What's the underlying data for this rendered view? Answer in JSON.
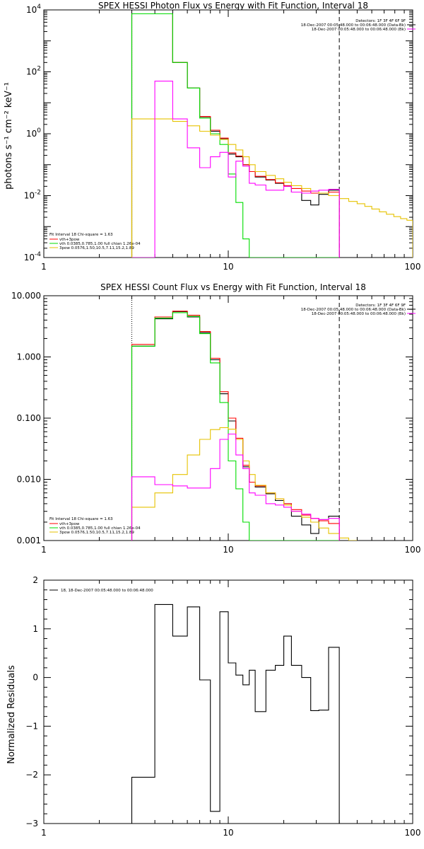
{
  "chart_data": [
    {
      "type": "line",
      "title": "SPEX HESSI Photon Flux vs Energy with Fit Function, Interval 18",
      "xlabel": "",
      "ylabel": "photons s⁻¹ cm⁻² keV⁻¹",
      "xscale": "log",
      "yscale": "log",
      "xlim": [
        1,
        100
      ],
      "ylim": [
        0.0001,
        10000
      ],
      "x_ticks": [
        "1",
        "10",
        "100"
      ],
      "y_ticks": [
        {
          "base": "10",
          "exp": "-4"
        },
        {
          "base": "10",
          "exp": "-2"
        },
        {
          "base": "10",
          "exp": "0"
        },
        {
          "base": "10",
          "exp": "2"
        },
        {
          "base": "10",
          "exp": "4"
        }
      ],
      "info_lines": [
        "Detectors: 1F 3F 4F 6F 9F",
        "18-Dec-2007 00:05:48.000 to 00:06:48.000 (Data-Bk)",
        "18-Dec-2007 00:05:48.000 to 00:06:48.000 (Bk)"
      ],
      "legend": {
        "header": "Fit Interval 18    Chi-square = 1.63",
        "items": [
          {
            "label": "vth+3pow",
            "color": "#ff0000"
          },
          {
            "label": "vth 0.0385,0.785,1.00  full chian 1.26e-04",
            "color": "#00dd00"
          },
          {
            "label": "3pow 0.0576,1.50,10.5,7.11,15.2,1.89",
            "color": "#e6c200"
          }
        ]
      },
      "vlines": [
        {
          "x": 3.0,
          "style": "dotted",
          "color": "#000000"
        },
        {
          "x": 40.0,
          "style": "dashed",
          "color": "#000000"
        }
      ],
      "series": [
        {
          "color": "#000000",
          "edges": [
            3,
            4,
            5,
            6,
            7,
            8,
            9,
            10,
            11,
            12,
            13,
            14,
            16,
            18,
            20,
            22,
            25,
            28,
            31,
            35,
            40
          ],
          "values": [
            7500,
            7500,
            200,
            30,
            3.5,
            1.2,
            0.7,
            0.22,
            0.18,
            0.1,
            0.06,
            0.04,
            0.032,
            0.025,
            0.02,
            0.013,
            0.007,
            0.005,
            0.011,
            0.015
          ]
        },
        {
          "color": "#ff0000",
          "edges": [
            3,
            4,
            5,
            6,
            7,
            8,
            9,
            10,
            11,
            12,
            13,
            14,
            16,
            18,
            20,
            22,
            25,
            28,
            31,
            35,
            40
          ],
          "values": [
            7500,
            7500,
            200,
            30,
            3.6,
            1.3,
            0.72,
            0.24,
            0.19,
            0.1,
            0.06,
            0.042,
            0.033,
            0.026,
            0.021,
            0.017,
            0.014,
            0.012,
            0.012,
            0.013
          ]
        },
        {
          "color": "#00dd00",
          "edges": [
            3,
            4,
            5,
            6,
            7,
            8,
            9,
            10,
            11,
            12,
            13,
            14,
            16,
            18,
            20,
            22,
            25,
            28,
            31,
            35,
            40
          ],
          "values": [
            7500,
            7500,
            200,
            30,
            3.2,
            1.0,
            0.45,
            0.05,
            0.006,
            0.0004,
            0.0001,
            0.0001,
            0.0001,
            0.0001,
            0.0001,
            0.0001,
            0.0001,
            0.0001,
            0.0001,
            0.0001
          ]
        },
        {
          "color": "#e6c200",
          "edges": [
            3,
            4,
            5,
            6,
            7,
            8,
            9,
            10,
            11,
            12,
            13,
            14,
            16,
            18,
            20,
            22,
            25,
            28,
            31,
            35,
            40,
            45,
            50,
            55,
            60,
            66,
            72,
            79,
            86,
            93,
            100
          ],
          "values": [
            3,
            3,
            2.5,
            1.8,
            1.2,
            0.9,
            0.65,
            0.45,
            0.3,
            0.18,
            0.1,
            0.06,
            0.045,
            0.035,
            0.027,
            0.021,
            0.017,
            0.014,
            0.012,
            0.01,
            0.008,
            0.0065,
            0.0055,
            0.0045,
            0.0037,
            0.003,
            0.0025,
            0.0021,
            0.0018,
            0.0016
          ]
        },
        {
          "color": "#ff00ff",
          "edges": [
            3,
            4,
            5,
            6,
            7,
            8,
            9,
            10,
            11,
            12,
            13,
            14,
            16,
            18,
            20,
            22,
            25,
            28,
            31,
            35,
            40
          ],
          "values": [
            0.0001,
            50,
            3,
            0.35,
            0.08,
            0.18,
            0.25,
            0.04,
            0.13,
            0.09,
            0.025,
            0.022,
            0.015,
            0.015,
            0.02,
            0.013,
            0.012,
            0.014,
            0.015,
            0.016
          ]
        }
      ]
    },
    {
      "type": "line",
      "title": "SPEX HESSI Count Flux vs Energy with Fit Function, Interval 18",
      "xlabel": "",
      "ylabel": "",
      "xscale": "log",
      "yscale": "log",
      "xlim": [
        1,
        100
      ],
      "ylim": [
        0.001,
        10
      ],
      "x_ticks": [
        "1",
        "10",
        "100"
      ],
      "y_ticks": [
        {
          "base": "0.001",
          "exp": ""
        },
        {
          "base": "0.010",
          "exp": ""
        },
        {
          "base": "0.100",
          "exp": ""
        },
        {
          "base": "1.000",
          "exp": ""
        },
        {
          "base": "10.000",
          "exp": ""
        }
      ],
      "info_lines": [
        "Detectors: 1F 3F 4F 6F 9F",
        "18-Dec-2007 00:05:48.000 to 00:06:48.000 (Data-Bk)",
        "18-Dec-2007 00:05:48.000 to 00:06:48.000 (Bk)"
      ],
      "legend": {
        "header": "Fit Interval 18    Chi-square = 1.63",
        "items": [
          {
            "label": "vth+3pow",
            "color": "#ff0000"
          },
          {
            "label": "vth 0.0385,0.785,1.00  full chian 1.26e-04",
            "color": "#00dd00"
          },
          {
            "label": "3pow 0.0576,1.50,10.5,7.11,15.2,1.89",
            "color": "#e6c200"
          }
        ]
      },
      "vlines": [
        {
          "x": 3.0,
          "style": "dotted",
          "color": "#000000"
        },
        {
          "x": 40.0,
          "style": "dashed",
          "color": "#000000"
        }
      ],
      "series": [
        {
          "color": "#000000",
          "edges": [
            3,
            4,
            5,
            6,
            7,
            8,
            9,
            10,
            11,
            12,
            13,
            14,
            16,
            18,
            20,
            22,
            25,
            28,
            31,
            35,
            40
          ],
          "values": [
            1.5,
            4.2,
            5.5,
            4.5,
            2.5,
            0.9,
            0.25,
            0.09,
            0.045,
            0.016,
            0.009,
            0.0075,
            0.0058,
            0.0045,
            0.004,
            0.0025,
            0.0018,
            0.0013,
            0.0022,
            0.0025
          ]
        },
        {
          "color": "#ff0000",
          "edges": [
            3,
            4,
            5,
            6,
            7,
            8,
            9,
            10,
            11,
            12,
            13,
            14,
            16,
            18,
            20,
            22,
            25,
            28,
            31,
            35,
            40
          ],
          "values": [
            1.6,
            4.5,
            5.6,
            4.8,
            2.6,
            0.95,
            0.27,
            0.1,
            0.047,
            0.017,
            0.009,
            0.0078,
            0.006,
            0.0048,
            0.004,
            0.0032,
            0.0026,
            0.0023,
            0.0021,
            0.0019
          ]
        },
        {
          "color": "#00dd00",
          "edges": [
            3,
            4,
            5,
            6,
            7,
            8,
            9,
            10,
            11,
            12,
            13,
            14,
            16,
            18,
            20,
            22,
            25,
            28,
            31,
            35,
            40
          ],
          "values": [
            1.5,
            4.3,
            5.3,
            4.6,
            2.4,
            0.8,
            0.18,
            0.02,
            0.007,
            0.002,
            0.001,
            0.001,
            0.001,
            0.001,
            0.001,
            0.001,
            0.001,
            0.001,
            0.001,
            0.001
          ]
        },
        {
          "color": "#e6c200",
          "edges": [
            3,
            4,
            5,
            6,
            7,
            8,
            9,
            10,
            11,
            12,
            13,
            14,
            16,
            18,
            20,
            22,
            25,
            28,
            31,
            35,
            40,
            45,
            50
          ],
          "values": [
            0.0035,
            0.006,
            0.012,
            0.025,
            0.045,
            0.065,
            0.07,
            0.066,
            0.045,
            0.02,
            0.012,
            0.008,
            0.006,
            0.0048,
            0.0038,
            0.003,
            0.0024,
            0.002,
            0.0016,
            0.0013,
            0.0011,
            0.001
          ]
        },
        {
          "color": "#ff00ff",
          "edges": [
            3,
            4,
            5,
            6,
            7,
            8,
            9,
            10,
            11,
            12,
            13,
            14,
            16,
            18,
            20,
            22,
            25,
            28,
            31,
            35,
            40
          ],
          "values": [
            0.011,
            0.0082,
            0.0078,
            0.0072,
            0.0072,
            0.015,
            0.045,
            0.055,
            0.025,
            0.015,
            0.006,
            0.0055,
            0.004,
            0.0038,
            0.0035,
            0.003,
            0.0027,
            0.0023,
            0.0022,
            0.0023
          ]
        }
      ]
    },
    {
      "type": "line",
      "title": "",
      "xlabel": "",
      "ylabel": "Normalized Residuals",
      "xscale": "log",
      "yscale": "linear",
      "xlim": [
        1,
        100
      ],
      "ylim": [
        -3,
        2
      ],
      "x_ticks": [
        "1",
        "10",
        "100"
      ],
      "y_ticks": [
        "−3",
        "−2",
        "−1",
        "0",
        "1",
        "2"
      ],
      "legend_text": "18, 18-Dec-2007 00:05:48.000 to 00:06:48.000",
      "series": [
        {
          "color": "#000000",
          "edges": [
            3,
            4,
            5,
            6,
            7,
            8,
            9,
            10,
            11,
            12,
            13,
            14,
            16,
            18,
            20,
            22,
            25,
            28,
            31,
            35,
            40
          ],
          "values": [
            -2.05,
            1.5,
            0.85,
            1.45,
            -0.05,
            -2.75,
            1.35,
            0.3,
            0.05,
            -0.15,
            0.15,
            -0.7,
            0.15,
            0.25,
            0.85,
            0.25,
            0.0,
            -0.68,
            -0.67,
            0.62
          ]
        }
      ]
    }
  ]
}
